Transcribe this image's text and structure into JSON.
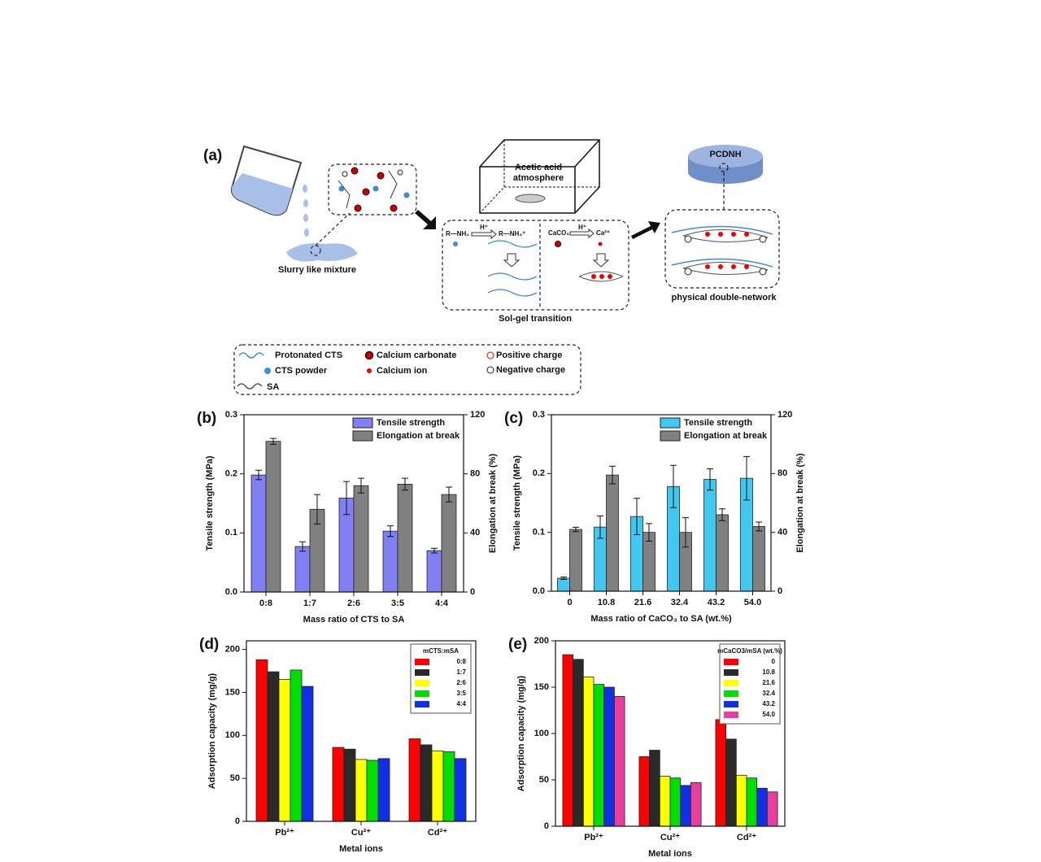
{
  "diagram": {
    "panel_label": "(a)",
    "slurry": "Slurry like mixture",
    "atmosphere": [
      "Acetic acid",
      "atmosphere"
    ],
    "sol_gel": "Sol-gel transition",
    "pcdnh": "PCDNH",
    "network": "physical double-network",
    "reaction": {
      "amine": "R—NH₂",
      "proton_1": "H⁺",
      "ammonium": "R—NH₃⁺",
      "carbonate": "CaCO₃",
      "proton_2": "H⁺",
      "calcium": "Ca²⁺"
    },
    "legend": [
      "Protonated CTS",
      "CTS powder",
      "SA",
      "Calcium carbonate",
      "Calcium ion",
      "Positive charge",
      "Negative charge"
    ]
  },
  "chart_data": [
    {
      "type": "bar",
      "panel_label": "(b)",
      "x_label": "Mass ratio of CTS to SA",
      "y_label": "Tensile strength (MPa)",
      "y2_label": "Elongation at break (%)",
      "categories": [
        "0:8",
        "1:7",
        "2:6",
        "3:5",
        "4:4"
      ],
      "series": [
        {
          "name": "Tensile strength",
          "color": "#8080f4",
          "values": [
            0.198,
            0.077,
            0.159,
            0.103,
            0.07
          ],
          "errors": [
            0.008,
            0.008,
            0.028,
            0.009,
            0.004
          ]
        },
        {
          "name": "Elongation at break",
          "color": "#808080",
          "axis": "y2",
          "values": [
            102,
            56,
            72,
            73,
            66
          ],
          "errors": [
            2,
            10,
            5,
            4,
            5
          ]
        }
      ],
      "ylim": [
        0,
        0.3
      ],
      "yticks": [
        {
          "value": 0,
          "label": "0.0"
        },
        0.1,
        0.2,
        0.3
      ],
      "y2lim": [
        0,
        120
      ],
      "y2ticks": [
        0,
        40,
        80,
        120
      ],
      "legend": "upper right"
    },
    {
      "type": "bar",
      "panel_label": "(c)",
      "x_label": "Mass ratio of CaCO₃ to SA (wt.%)",
      "y_label": "Tensile strength (MPa)",
      "y2_label": "Elongation at break (%)",
      "categories": [
        "0",
        "10.8",
        "21.6",
        "32.4",
        "43.2",
        "54.0"
      ],
      "series": [
        {
          "name": "Tensile strength",
          "color": "#40c8f0",
          "values": [
            0.022,
            0.109,
            0.127,
            0.178,
            0.19,
            0.192
          ],
          "errors": [
            0.002,
            0.019,
            0.031,
            0.036,
            0.018,
            0.037
          ]
        },
        {
          "name": "Elongation at break",
          "color": "#808080",
          "axis": "y2",
          "values": [
            42,
            79,
            40,
            40,
            52,
            44
          ],
          "errors": [
            1.5,
            6,
            6,
            10,
            4,
            3
          ]
        }
      ],
      "ylim": [
        0,
        0.3
      ],
      "yticks": [
        {
          "value": 0,
          "label": "0.0"
        },
        0.1,
        0.2,
        0.3
      ],
      "y2lim": [
        0,
        120
      ],
      "y2ticks": [
        0,
        40,
        80,
        120
      ],
      "legend": "upper right"
    },
    {
      "type": "bar",
      "panel_label": "(d)",
      "x_label": "Metal ions",
      "y_label": "Adsorption capacity (mg/g)",
      "legend_title": "mCTS:mSA",
      "categories": [
        "Pb²⁺",
        "Cu²⁺",
        "Cd²⁺"
      ],
      "series": [
        {
          "name": "0:8",
          "color": "#ff0000",
          "values": [
            188,
            86,
            96
          ]
        },
        {
          "name": "1:7",
          "color": "#2a2a2a",
          "values": [
            174,
            84,
            89
          ]
        },
        {
          "name": "2:6",
          "color": "#ffff00",
          "values": [
            165,
            72,
            82
          ]
        },
        {
          "name": "3:5",
          "color": "#00e000",
          "values": [
            176,
            71,
            81
          ]
        },
        {
          "name": "4:4",
          "color": "#1030e8",
          "values": [
            157,
            73,
            73
          ]
        }
      ],
      "ylim": [
        0,
        210
      ],
      "yticks": [
        0,
        50,
        100,
        150,
        200
      ],
      "legend": "upper right"
    },
    {
      "type": "bar",
      "panel_label": "(e)",
      "x_label": "Metal ions",
      "y_label": "Adsorption capacity (mg/g)",
      "legend_title": "mCaCO3/mSA (wt.%)",
      "categories": [
        "Pb²⁺",
        "Cu²⁺",
        "Cd²⁺"
      ],
      "series": [
        {
          "name": "0",
          "color": "#ff0000",
          "values": [
            185,
            75,
            115
          ]
        },
        {
          "name": "10.8",
          "color": "#2a2a2a",
          "values": [
            180,
            82,
            94
          ]
        },
        {
          "name": "21.6",
          "color": "#ffff00",
          "values": [
            161,
            54,
            55
          ]
        },
        {
          "name": "32.4",
          "color": "#00e000",
          "values": [
            153,
            52,
            52
          ]
        },
        {
          "name": "43.2",
          "color": "#1030e8",
          "values": [
            150,
            44,
            41
          ]
        },
        {
          "name": "54.0",
          "color": "#e8409a",
          "values": [
            140,
            47,
            37
          ]
        }
      ],
      "ylim": [
        0,
        200
      ],
      "yticks": [
        0,
        50,
        100,
        150,
        200
      ],
      "legend": "upper right"
    }
  ]
}
